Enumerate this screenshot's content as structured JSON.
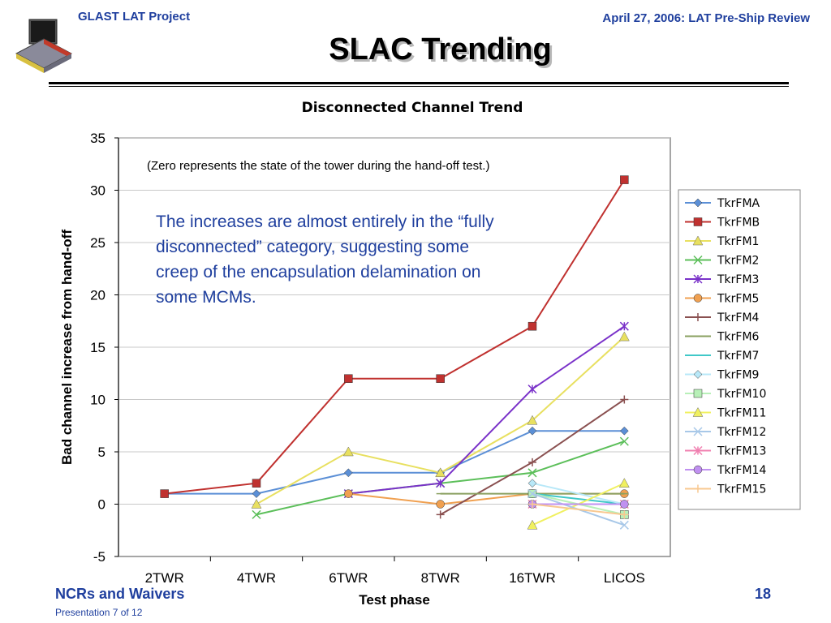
{
  "header": {
    "project": "GLAST LAT Project",
    "date": "April 27, 2006: LAT Pre-Ship Review"
  },
  "slide_title": "SLAC Trending",
  "annotations": {
    "note": "(Zero represents the state of the tower during the hand-off test.)",
    "callout": "The increases are almost entirely in the “fully disconnected” category, suggesting some creep of the encapsulation delamination on some MCMs."
  },
  "footer": {
    "section": "NCRs and Waivers",
    "presentation": "Presentation 7 of 12",
    "page": "18"
  },
  "chart_data": {
    "type": "line",
    "title": "Disconnected Channel Trend",
    "xlabel": "Test phase",
    "ylabel": "Bad channel increase from hand-off",
    "categories": [
      "2TWR",
      "4TWR",
      "6TWR",
      "8TWR",
      "16TWR",
      "LICOS"
    ],
    "ylim": [
      -5,
      35
    ],
    "yticks": [
      35,
      30,
      25,
      20,
      15,
      10,
      5,
      0,
      -5
    ],
    "grid": "horizontal",
    "legend_position": "right",
    "series": [
      {
        "name": "TkrFMA",
        "color": "#5b8fd6",
        "marker": "diamond",
        "values": [
          1,
          1,
          3,
          3,
          7,
          7
        ]
      },
      {
        "name": "TkrFMB",
        "color": "#c0312f",
        "marker": "square",
        "values": [
          1,
          2,
          12,
          12,
          17,
          31
        ]
      },
      {
        "name": "TkrFM1",
        "color": "#e8e060",
        "marker": "triangle",
        "values": [
          null,
          0,
          5,
          3,
          8,
          16
        ]
      },
      {
        "name": "TkrFM2",
        "color": "#5cbf5a",
        "marker": "x",
        "values": [
          null,
          -1,
          1,
          2,
          3,
          6
        ]
      },
      {
        "name": "TkrFM3",
        "color": "#7a32c9",
        "marker": "star",
        "values": [
          null,
          null,
          1,
          2,
          11,
          17
        ]
      },
      {
        "name": "TkrFM5",
        "color": "#f0a050",
        "marker": "circle",
        "values": [
          null,
          null,
          1,
          0,
          1,
          1
        ]
      },
      {
        "name": "TkrFM4",
        "color": "#8a5050",
        "marker": "plus",
        "values": [
          null,
          null,
          null,
          -1,
          4,
          10
        ]
      },
      {
        "name": "TkrFM6",
        "color": "#8aa060",
        "marker": "dash",
        "values": [
          null,
          null,
          null,
          1,
          1,
          1
        ]
      },
      {
        "name": "TkrFM7",
        "color": "#40c8c8",
        "marker": "dash",
        "values": [
          null,
          null,
          null,
          null,
          1,
          0
        ]
      },
      {
        "name": "TkrFM9",
        "color": "#b8e8f8",
        "marker": "diamond",
        "values": [
          null,
          null,
          null,
          null,
          2,
          0
        ]
      },
      {
        "name": "TkrFM10",
        "color": "#b8f0b8",
        "marker": "square",
        "values": [
          null,
          null,
          null,
          null,
          1,
          -1
        ]
      },
      {
        "name": "TkrFM11",
        "color": "#f0f060",
        "marker": "triangle",
        "values": [
          null,
          null,
          null,
          null,
          -2,
          2
        ]
      },
      {
        "name": "TkrFM12",
        "color": "#a8c8e8",
        "marker": "x",
        "values": [
          null,
          null,
          null,
          null,
          1,
          -2
        ]
      },
      {
        "name": "TkrFM13",
        "color": "#f080b0",
        "marker": "star",
        "values": [
          null,
          null,
          null,
          null,
          0,
          0
        ]
      },
      {
        "name": "TkrFM14",
        "color": "#c090f0",
        "marker": "circle",
        "values": [
          null,
          null,
          null,
          null,
          0,
          0
        ]
      },
      {
        "name": "TkrFM15",
        "color": "#f8c890",
        "marker": "plus",
        "values": [
          null,
          null,
          null,
          null,
          0,
          -1
        ]
      }
    ]
  },
  "logo": {
    "icon": "satellite-logo-icon"
  }
}
